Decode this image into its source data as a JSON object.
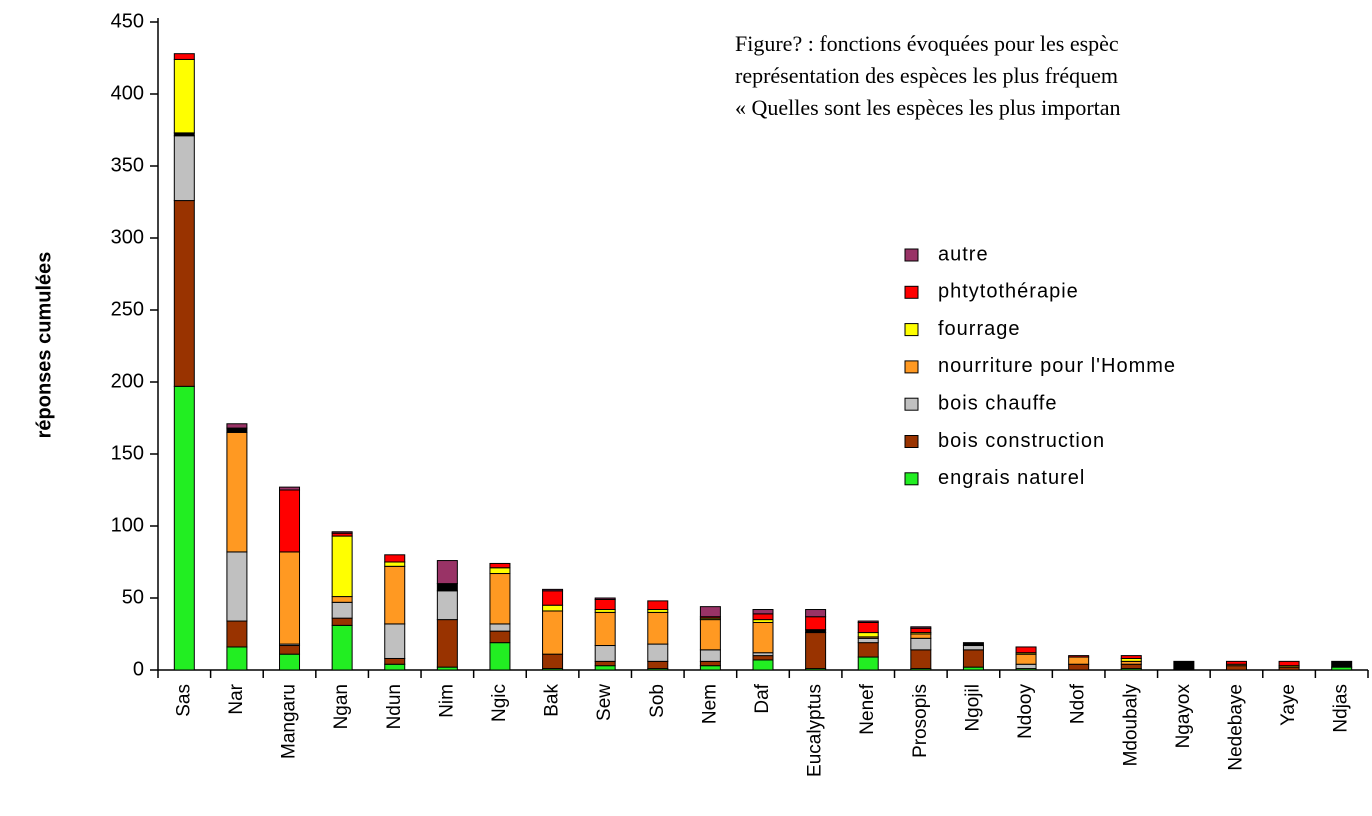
{
  "chart_data": {
    "type": "stacked_bar",
    "title_lines": [
      "Figure? : fonctions évoquées pour les espèc",
      "représentation des espèces les plus fréquem",
      "« Quelles sont les espèces les plus importan"
    ],
    "y_label": "réponses cumulées",
    "categories": [
      "Sas",
      "Nar",
      "Mangaru",
      "Ngan",
      "Ndun",
      "Nim",
      "Ngic",
      "Bak",
      "Sew",
      "Sob",
      "Nem",
      "Daf",
      "Eucalyptus",
      "Nenef",
      "Prosopis",
      "Ngojil",
      "Ndooy",
      "Ndof",
      "Mdoubaly",
      "Ngayox",
      "Nedebaye",
      "Yaye",
      "Ndjas"
    ],
    "series": [
      {
        "name": "engrais naturel",
        "color": "#22ee22",
        "values": [
          197,
          16,
          11,
          31,
          4,
          2,
          19,
          1,
          3,
          1,
          3,
          7,
          1,
          9,
          1,
          2,
          1,
          0,
          1,
          0,
          0,
          0,
          2
        ]
      },
      {
        "name": "bois construction",
        "color": "#993300",
        "values": [
          129,
          18,
          6,
          5,
          4,
          33,
          8,
          10,
          3,
          5,
          3,
          3,
          25,
          10,
          13,
          12,
          0,
          4,
          3,
          0,
          3,
          2,
          0
        ]
      },
      {
        "name": "bois chauffe",
        "color": "#c0c0c0",
        "values": [
          45,
          48,
          1,
          11,
          24,
          20,
          5,
          0,
          11,
          12,
          8,
          2,
          0,
          3,
          8,
          3,
          3,
          0,
          0,
          0,
          0,
          0,
          0
        ]
      },
      {
        "name": "nourriture pour l'Homme",
        "color": "#ff9922",
        "values": [
          0,
          83,
          64,
          4,
          40,
          0,
          35,
          30,
          23,
          22,
          21,
          21,
          0,
          1,
          3,
          0,
          7,
          5,
          2,
          0,
          1,
          0,
          0
        ]
      },
      {
        "color": "#000000",
        "values": [
          2,
          3,
          0,
          0,
          0,
          5,
          0,
          0,
          0,
          0,
          0,
          0,
          2,
          0,
          0,
          2,
          0,
          0,
          0,
          6,
          0,
          0,
          4
        ]
      },
      {
        "name": "fourrage",
        "color": "#ffff00",
        "values": [
          51,
          0,
          0,
          42,
          3,
          0,
          4,
          4,
          2,
          2,
          1,
          2,
          0,
          3,
          1,
          0,
          1,
          0,
          2,
          0,
          0,
          1,
          0
        ]
      },
      {
        "name": "phtytothérapie",
        "color": "#ff0000",
        "values": [
          4,
          0,
          43,
          2,
          5,
          0,
          3,
          10,
          7,
          6,
          1,
          4,
          9,
          7,
          3,
          0,
          4,
          1,
          2,
          0,
          2,
          3,
          0
        ]
      },
      {
        "name": "autre",
        "color": "#993366",
        "values": [
          0,
          3,
          2,
          1,
          0,
          16,
          0,
          1,
          1,
          0,
          7,
          3,
          5,
          1,
          1,
          0,
          0,
          0,
          0,
          0,
          0,
          0,
          0
        ]
      }
    ],
    "ylim": [
      0,
      450
    ],
    "yticks": [
      0,
      50,
      100,
      150,
      200,
      250,
      300,
      350,
      400,
      450
    ]
  }
}
